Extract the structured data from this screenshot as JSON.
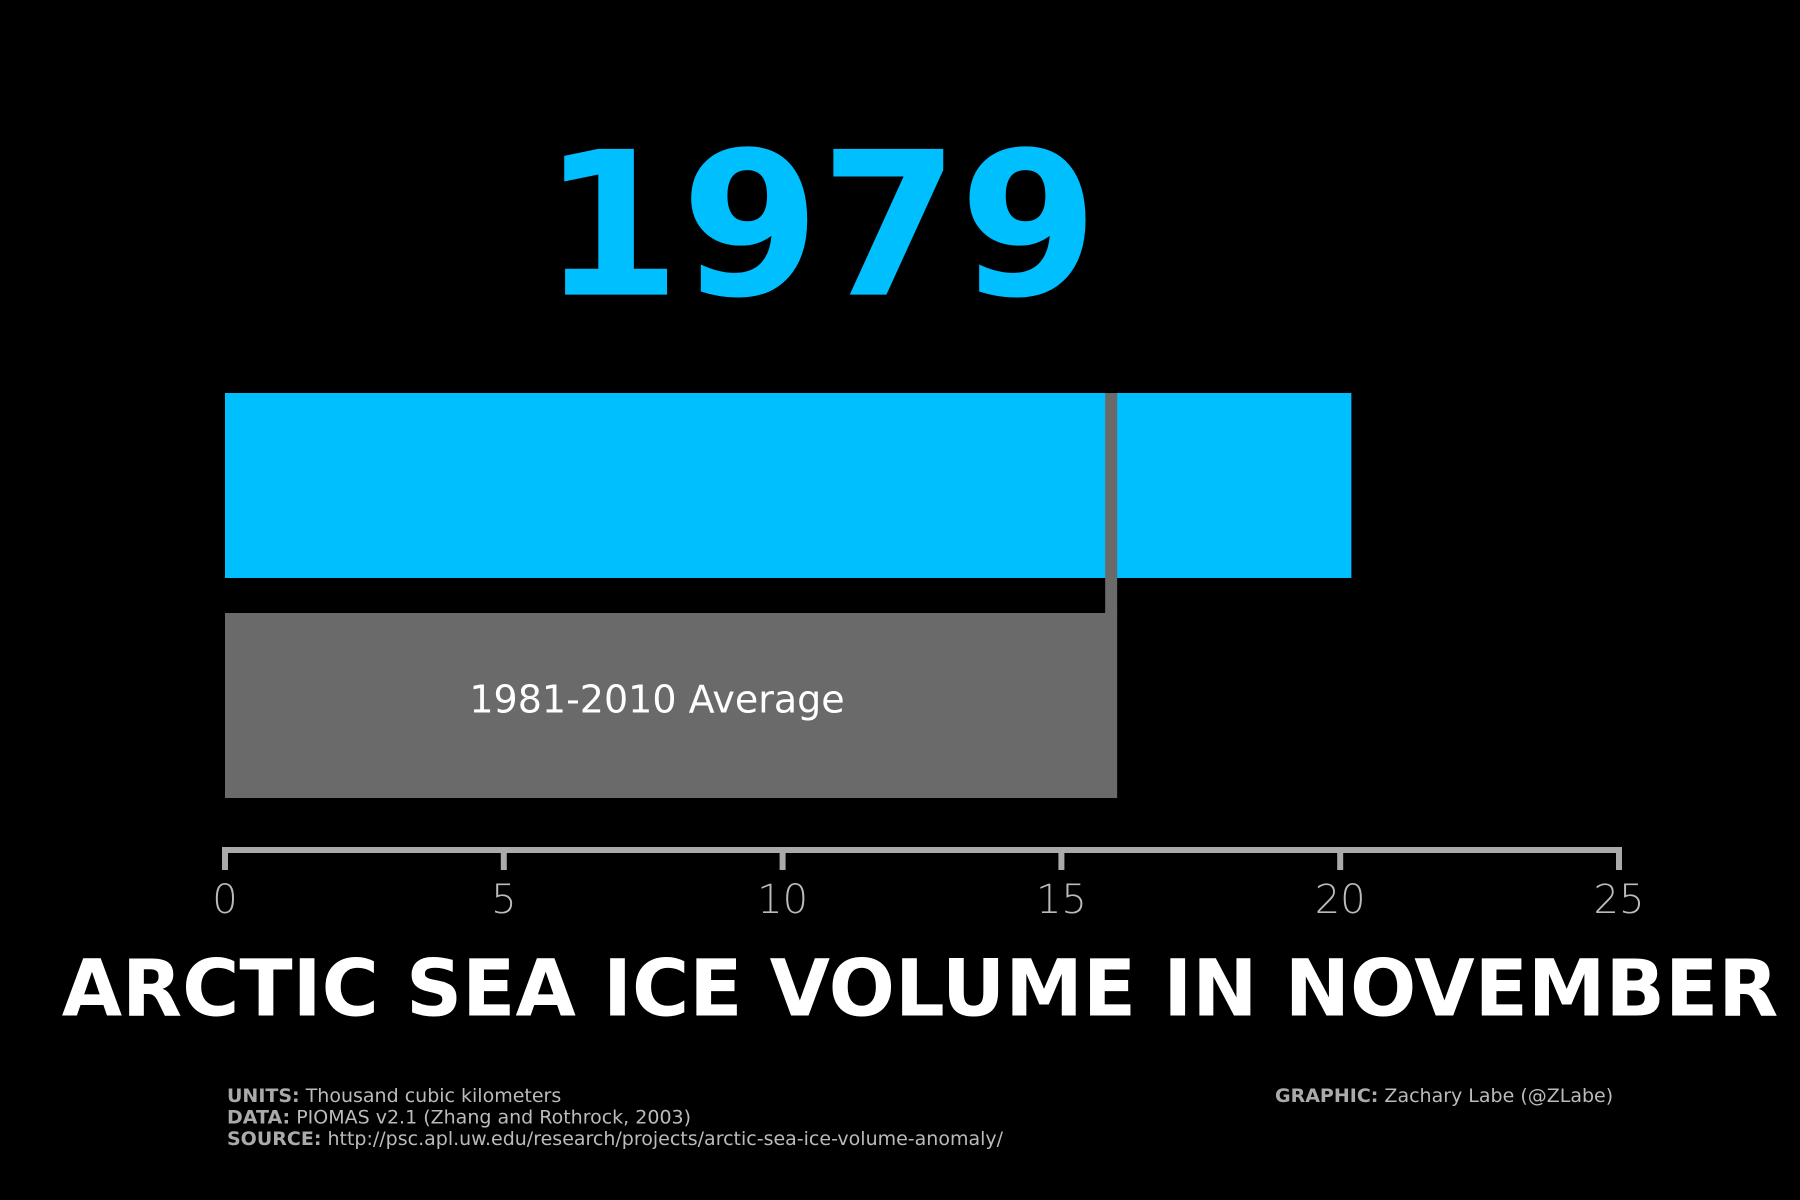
{
  "chart_data": {
    "type": "bar",
    "orientation": "horizontal",
    "title": "ARCTIC SEA ICE VOLUME IN NOVEMBER",
    "categories": [
      "1979",
      "1981-2010 Average"
    ],
    "values": [
      20.2,
      16.0
    ],
    "colors": [
      "#00bfff",
      "#6a6a6a"
    ],
    "xlim": [
      0,
      25
    ],
    "xticks": [
      0,
      5,
      10,
      15,
      20,
      25
    ],
    "notes": [
      {
        "label": "UNITS:",
        "text": "Thousand cubic kilometers"
      },
      {
        "label": "DATA:",
        "text": "PIOMAS v2.1 (Zhang and Rothrock, 2003)"
      },
      {
        "label": "SOURCE:",
        "text": "http://psc.apl.uw.edu/research/projects/arctic-sea-ice-volume-anomaly/"
      }
    ],
    "credit": {
      "label": "GRAPHIC:",
      "text": "Zachary Labe (@ZLabe)"
    }
  }
}
